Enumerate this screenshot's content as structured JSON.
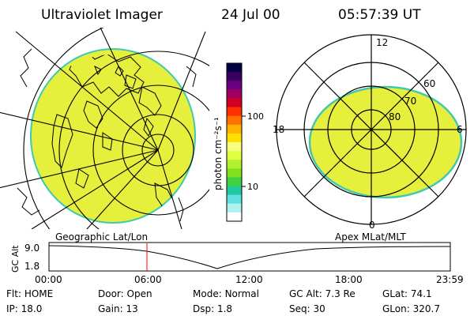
{
  "header": {
    "instrument": "Ultraviolet Imager",
    "date": "24 Jul 00",
    "time": "05:57:39 UT"
  },
  "colorbar": {
    "unit_label": "photon cm⁻²s⁻¹",
    "ticks": [
      "100",
      "10"
    ],
    "colors": [
      "#000040",
      "#3a0060",
      "#6a0080",
      "#a00060",
      "#d00020",
      "#ff3000",
      "#ff7000",
      "#ffb000",
      "#ffe000",
      "#f8ff80",
      "#e0ff40",
      "#b0f030",
      "#80e020",
      "#40d040",
      "#20c8a0",
      "#60e0e0",
      "#b0f0f0",
      "#ffffff"
    ]
  },
  "left_panel": {
    "caption": "Geographic Lat/Lon",
    "image_color": "#e6f03c"
  },
  "right_panel": {
    "caption": "Apex MLat/MLT",
    "image_color": "#e6f03c",
    "mlt_labels": {
      "top": "12",
      "left": "18",
      "right": "6",
      "bottom": "0"
    },
    "lat_labels": [
      "60",
      "70",
      "80"
    ]
  },
  "altitude_plot": {
    "ylabel": "GC Alt",
    "yticks": [
      "9.0",
      "1.8"
    ],
    "xticks": [
      "00:00",
      "06:00",
      "12:00",
      "18:00",
      "23:59"
    ],
    "marker_color": "#ff0000"
  },
  "status": {
    "row1": [
      {
        "label": "Flt:",
        "value": "HOME"
      },
      {
        "label": "Door:",
        "value": "Open"
      },
      {
        "label": "Mode:",
        "value": "Normal"
      },
      {
        "label": "GC Alt:",
        "value": "7.3 Re"
      },
      {
        "label": "GLat:",
        "value": "74.1"
      }
    ],
    "row2": [
      {
        "label": "IP:",
        "value": "18.0"
      },
      {
        "label": "Gain:",
        "value": "13"
      },
      {
        "label": "Dsp:",
        "value": "1.8"
      },
      {
        "label": "Seq:",
        "value": "30"
      },
      {
        "label": "GLon:",
        "value": "320.7"
      }
    ]
  }
}
